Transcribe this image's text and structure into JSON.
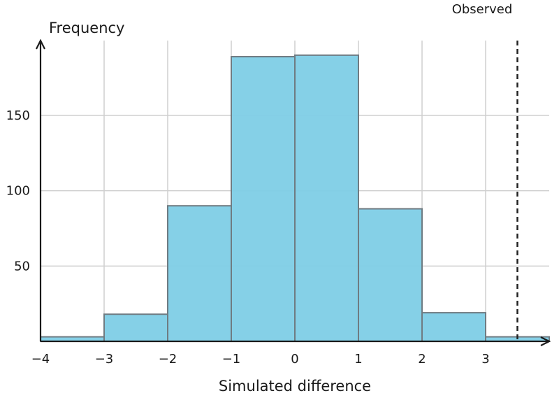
{
  "chart_data": {
    "type": "bar",
    "subtype": "histogram",
    "bin_edges": [
      -4,
      -3,
      -2,
      -1,
      0,
      1,
      2,
      3,
      4
    ],
    "values": [
      3,
      18,
      90,
      189,
      190,
      88,
      19,
      3
    ],
    "xlim": [
      -4,
      4
    ],
    "ylim": [
      0,
      200
    ],
    "x_ticks": [
      -4,
      -3,
      -2,
      -1,
      0,
      1,
      2,
      3
    ],
    "x_tick_labels": [
      "−4",
      "−3",
      "−2",
      "−1",
      "0",
      "1",
      "2",
      "3"
    ],
    "y_ticks": [
      50,
      100,
      150
    ],
    "y_tick_labels": [
      "50",
      "100",
      "150"
    ],
    "xlabel": "Simulated difference",
    "ylabel": "Frequency",
    "bar_color": "#7ecde6",
    "grid": true,
    "observed": {
      "x": 3.5,
      "label": "Observed",
      "style": "dashed",
      "color": "#222222"
    }
  }
}
